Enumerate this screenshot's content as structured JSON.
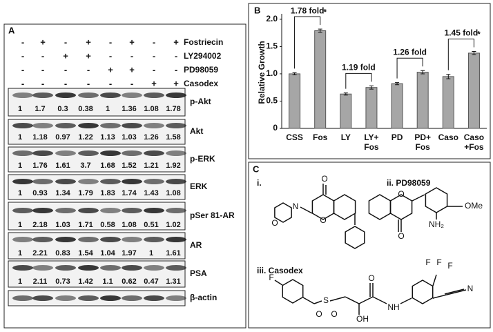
{
  "panel_a": {
    "label": "A",
    "treatments": [
      {
        "name": "Fostriecin",
        "signs": [
          "-",
          "+",
          "-",
          "+",
          "-",
          "+",
          "-",
          "+"
        ]
      },
      {
        "name": "LY294002",
        "signs": [
          "-",
          "-",
          "+",
          "+",
          "-",
          "-",
          "-",
          "-"
        ]
      },
      {
        "name": "PD98059",
        "signs": [
          "-",
          "-",
          "-",
          "-",
          "+",
          "+",
          "-",
          "-"
        ]
      },
      {
        "name": "Casodex",
        "signs": [
          "-",
          "-",
          "-",
          "-",
          "-",
          "-",
          "+",
          "+"
        ]
      }
    ],
    "blots": [
      {
        "name": "p-Akt",
        "values": [
          1,
          1.7,
          0.3,
          0.38,
          1,
          1.36,
          1.08,
          1.78
        ]
      },
      {
        "name": "Akt",
        "values": [
          1,
          1.18,
          0.97,
          1.22,
          1.13,
          1.03,
          1.26,
          1.58
        ]
      },
      {
        "name": "p-ERK",
        "values": [
          1,
          1.76,
          1.61,
          3.7,
          1.68,
          1.52,
          1.21,
          1.92
        ]
      },
      {
        "name": "ERK",
        "values": [
          1,
          0.93,
          1.34,
          1.79,
          1.83,
          1.74,
          1.43,
          1.08
        ]
      },
      {
        "name": "pSer 81-AR",
        "values": [
          1,
          2.18,
          1.03,
          1.71,
          0.58,
          1.08,
          0.51,
          1.02
        ]
      },
      {
        "name": "AR",
        "values": [
          1,
          2.21,
          0.83,
          1.54,
          1.04,
          1.97,
          1,
          1.61
        ]
      },
      {
        "name": "PSA",
        "values": [
          1,
          2.11,
          0.73,
          1.42,
          1.1,
          0.62,
          0.47,
          1.31
        ]
      },
      {
        "name": "β-actin"
      }
    ]
  },
  "chart_data": {
    "type": "bar",
    "label": "B",
    "ylabel": "Relative Growth",
    "categories": [
      "CSS",
      "Fos",
      "LY",
      "LY+ Fos",
      "PD",
      "PD+ Fos",
      "Caso",
      "Caso +Fos"
    ],
    "values": [
      1.0,
      1.79,
      0.63,
      0.75,
      0.82,
      1.03,
      0.95,
      1.38
    ],
    "errors": [
      0.02,
      0.03,
      0.02,
      0.03,
      0.02,
      0.03,
      0.04,
      0.03
    ],
    "color": "#a6a6a6",
    "ylim": [
      0,
      2.1
    ],
    "yticks": [
      0,
      0.5,
      {
        "value": 1,
        "label": "1.0"
      },
      1.5,
      {
        "value": 2,
        "label": "2.0"
      }
    ],
    "annotations": [
      {
        "text": "1.78 fold",
        "from": 0,
        "to": 1,
        "marker": "*"
      },
      {
        "text": "1.19 fold",
        "from": 2,
        "to": 3
      },
      {
        "text": "1.26 fold",
        "from": 4,
        "to": 5
      },
      {
        "text": "1.45 fold",
        "from": 6,
        "to": 7,
        "marker": "*"
      }
    ]
  },
  "panel_c": {
    "label": "C",
    "structures": [
      {
        "label": "i.",
        "atoms": [
          "O",
          "O",
          "N",
          "O"
        ]
      },
      {
        "label": "ii. PD98059",
        "atoms": [
          "O",
          "O",
          "OMe",
          "NH₂"
        ]
      },
      {
        "label": "iii. Casodex",
        "atoms": [
          "F",
          "S",
          "O",
          "O",
          "O",
          "OH",
          "NH",
          "F",
          "F",
          "F",
          "N"
        ]
      }
    ]
  }
}
